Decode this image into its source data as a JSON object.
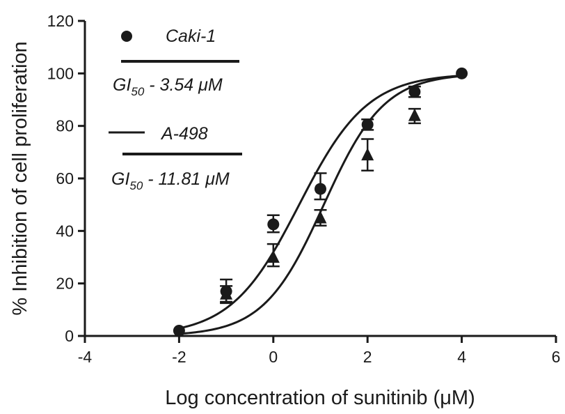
{
  "chart_data": {
    "type": "scatter",
    "title": "",
    "xlabel": "Log concentration of sunitinib (μM)",
    "ylabel": "% Inhibition of cell proliferation",
    "xlim": [
      -4,
      6
    ],
    "ylim": [
      0,
      120
    ],
    "xticks": [
      -4,
      -2,
      0,
      2,
      4,
      6
    ],
    "yticks": [
      0,
      20,
      40,
      60,
      80,
      100,
      120
    ],
    "grid": false,
    "legend_position": "top-left",
    "series": [
      {
        "name": "Caki-1",
        "marker": "circle",
        "x": [
          -2,
          -1,
          0,
          1,
          2,
          3,
          4
        ],
        "y": [
          2,
          17,
          42.5,
          56,
          80.5,
          93,
          100
        ],
        "err_up": [
          0,
          4.5,
          3.5,
          6,
          2,
          2,
          0
        ],
        "err_down": [
          0,
          4,
          3,
          4,
          2,
          2,
          0
        ],
        "gi50_label": "GI",
        "gi50_subscript": "50",
        "gi50_text": " - 3.54 μM",
        "fit_curve": {
          "model": "sigmoid",
          "midpoint": 0.549,
          "slope": 0.725
        }
      },
      {
        "name": "A-498",
        "marker": "triangle",
        "x": [
          -1,
          0,
          1,
          2,
          3
        ],
        "y": [
          16,
          30,
          45,
          69,
          84
        ],
        "err_up": [
          3,
          5,
          3,
          6,
          2.5
        ],
        "err_down": [
          3.5,
          3.5,
          3,
          6,
          3
        ],
        "gi50_label": "GI",
        "gi50_subscript": "50",
        "gi50_text": " - 11.81 μM",
        "fit_curve": {
          "model": "sigmoid",
          "midpoint": 1.072,
          "slope": 0.64
        }
      }
    ]
  }
}
